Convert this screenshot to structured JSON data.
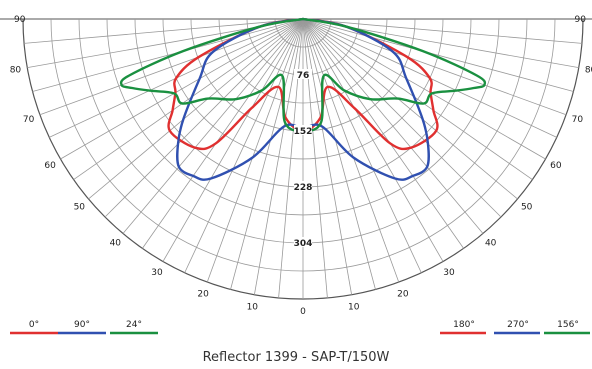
{
  "chart_data": {
    "type": "polar",
    "title": "Reflector 1399 - SAP-T/150W",
    "angle_ticks": [
      "0",
      "10",
      "20",
      "30",
      "40",
      "50",
      "60",
      "70",
      "80",
      "90"
    ],
    "radial_ticks": [
      76,
      152,
      228,
      304
    ],
    "rmax": 380,
    "legend_left": [
      {
        "name": "0°",
        "color": "#e03030"
      },
      {
        "name": "90°",
        "color": "#3050b0"
      },
      {
        "name": "24°",
        "color": "#1a9040"
      }
    ],
    "legend_right": [
      {
        "name": "180°",
        "color": "#e03030"
      },
      {
        "name": "270°",
        "color": "#3050b0"
      },
      {
        "name": "156°",
        "color": "#1a9040"
      }
    ],
    "series": [
      {
        "name": "0° / 180°",
        "color": "#e03030",
        "angles": [
          0,
          10,
          20,
          30,
          35,
          40,
          50,
          55,
          60,
          65,
          70,
          80,
          90
        ],
        "values": [
          152,
          136,
          98,
          140,
          206,
          228,
          236,
          216,
          200,
          190,
          150,
          60,
          0
        ]
      },
      {
        "name": "90° / 270°",
        "color": "#3050b0",
        "angles": [
          0,
          10,
          20,
          30,
          35,
          40,
          45,
          50,
          60,
          70,
          80,
          90
        ],
        "values": [
          148,
          148,
          200,
          250,
          260,
          262,
          240,
          212,
          162,
          130,
          60,
          0
        ]
      },
      {
        "name": "24° / 156°",
        "color": "#1a9040",
        "angles": [
          0,
          10,
          20,
          30,
          40,
          50,
          55,
          60,
          65,
          68,
          70,
          72,
          75,
          80,
          90
        ],
        "values": [
          152,
          142,
          82,
          112,
          142,
          168,
          200,
          202,
          230,
          250,
          262,
          248,
          168,
          60,
          0
        ]
      }
    ]
  }
}
